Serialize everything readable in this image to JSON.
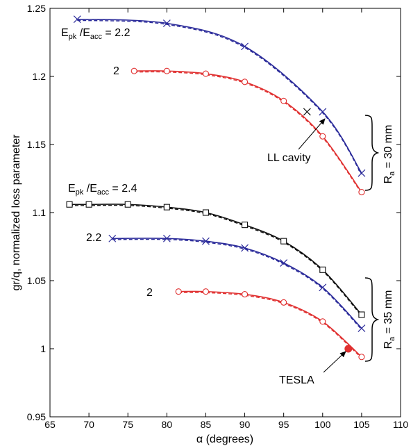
{
  "chart_data": {
    "type": "line",
    "title": "",
    "xlabel": "α (degrees)",
    "ylabel": "gr/q, normalized loss parameter",
    "xlim": [
      65,
      110
    ],
    "ylim": [
      0.95,
      1.25
    ],
    "xticks": [
      "65",
      "70",
      "75",
      "80",
      "85",
      "90",
      "95",
      "100",
      "105",
      "110"
    ],
    "yticks": [
      "0.95",
      "1",
      "1.05",
      "1.1",
      "1.15",
      "1.2",
      "1.25"
    ],
    "grid": false,
    "legend": "none",
    "series": [
      {
        "group": "Ra = 30 mm",
        "ratio": "2.2",
        "color": "#2b2b9a",
        "marker": "x",
        "x": [
          68.5,
          80,
          90,
          100,
          105
        ],
        "y": [
          1.242,
          1.239,
          1.222,
          1.174,
          1.129
        ]
      },
      {
        "group": "Ra = 30 mm",
        "ratio": "2",
        "color": "#e03030",
        "marker": "circle",
        "x": [
          75.8,
          80,
          85,
          90,
          95,
          100,
          105
        ],
        "y": [
          1.204,
          1.204,
          1.202,
          1.196,
          1.182,
          1.156,
          1.115
        ]
      },
      {
        "group": "Ra = 35 mm",
        "ratio": "2.4",
        "color": "#111111",
        "marker": "square",
        "x": [
          67.5,
          70,
          75,
          80,
          85,
          90,
          95,
          100,
          105
        ],
        "y": [
          1.106,
          1.106,
          1.106,
          1.104,
          1.1,
          1.091,
          1.079,
          1.058,
          1.025
        ]
      },
      {
        "group": "Ra = 35 mm",
        "ratio": "2.2",
        "color": "#2b2b9a",
        "marker": "x",
        "x": [
          73,
          80,
          85,
          90,
          95,
          100,
          105
        ],
        "y": [
          1.081,
          1.081,
          1.079,
          1.074,
          1.063,
          1.045,
          1.015
        ]
      },
      {
        "group": "Ra = 35 mm",
        "ratio": "2",
        "color": "#e03030",
        "marker": "circle",
        "x": [
          81.5,
          85,
          90,
          95,
          100,
          105
        ],
        "y": [
          1.042,
          1.042,
          1.04,
          1.034,
          1.02,
          0.994
        ]
      }
    ],
    "points": [
      {
        "label": "LL cavity",
        "x": 98,
        "y": 1.174,
        "marker": "x",
        "color": "#111111"
      },
      {
        "label": "TESLA",
        "x": 103.3,
        "y": 1.0,
        "marker": "filled-circle",
        "color": "#e03030"
      }
    ],
    "annotations": {
      "top_ratio": {
        "prefix": "E",
        "sub1": "pk",
        "mid": " /E",
        "sub2": "acc",
        "suffix": " = 2.2"
      },
      "top_2": "2",
      "mid_ratio": {
        "prefix": "E",
        "sub1": "pk",
        "mid": " /E",
        "sub2": "acc",
        "suffix": " = 2.4"
      },
      "mid_22": "2.2",
      "low_2": "2",
      "ll_label": "LL cavity",
      "tesla_label": "TESLA",
      "ra30": {
        "prefix": "R",
        "sub": "a",
        "suffix": " = 30 mm"
      },
      "ra35": {
        "prefix": "R",
        "sub": "a",
        "suffix": " = 35 mm"
      }
    }
  }
}
